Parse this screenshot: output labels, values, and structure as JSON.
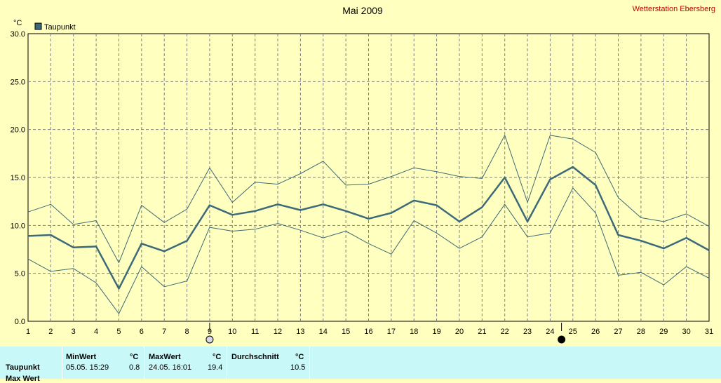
{
  "chart_data": {
    "type": "line",
    "title": "Mai 2009",
    "station": "Wetterstation Ebersberg",
    "ylabel": "°C",
    "ylim": [
      0,
      30
    ],
    "yticks": [
      "0.0",
      "5.0",
      "10.0",
      "15.0",
      "20.0",
      "25.0",
      "30.0"
    ],
    "x": [
      1,
      2,
      3,
      4,
      5,
      6,
      7,
      8,
      9,
      10,
      11,
      12,
      13,
      14,
      15,
      16,
      17,
      18,
      19,
      20,
      21,
      22,
      23,
      24,
      25,
      26,
      27,
      28,
      29,
      30,
      31
    ],
    "xlim": [
      1,
      31
    ],
    "grid": true,
    "legend": {
      "position": "top-left",
      "entries": [
        "Taupunkt"
      ]
    },
    "series": [
      {
        "name": "Taupunkt",
        "role": "mean",
        "values": [
          8.9,
          9.0,
          7.7,
          7.8,
          3.4,
          8.1,
          7.3,
          8.4,
          12.1,
          11.1,
          11.5,
          12.2,
          11.6,
          12.2,
          11.5,
          10.7,
          11.3,
          12.6,
          12.1,
          10.4,
          11.9,
          15.0,
          10.4,
          14.8,
          16.1,
          14.2,
          9.0,
          8.4,
          7.6,
          8.7,
          7.4
        ]
      },
      {
        "role": "max",
        "values": [
          11.4,
          12.2,
          10.1,
          10.5,
          6.1,
          12.1,
          10.3,
          11.7,
          16.0,
          12.4,
          14.5,
          14.3,
          15.4,
          16.7,
          14.2,
          14.3,
          15.1,
          16.0,
          15.6,
          15.1,
          14.9,
          19.4,
          12.4,
          19.4,
          19.0,
          17.6,
          12.9,
          10.8,
          10.4,
          11.2,
          9.9
        ]
      },
      {
        "role": "min",
        "values": [
          6.5,
          5.2,
          5.5,
          4.0,
          0.8,
          5.7,
          3.6,
          4.2,
          9.8,
          9.4,
          9.6,
          10.2,
          9.5,
          8.7,
          9.4,
          8.1,
          7.0,
          10.5,
          9.2,
          7.6,
          8.8,
          12.2,
          8.8,
          9.2,
          13.9,
          11.3,
          4.8,
          5.1,
          3.8,
          5.7,
          4.5
        ]
      }
    ],
    "markers": [
      {
        "x": 9,
        "icon": "full-moon-icon"
      },
      {
        "x": 24.5,
        "icon": "new-moon-icon"
      }
    ],
    "colors": {
      "background": "#ffffc0",
      "line": "#3c6a78",
      "grid": "#808080",
      "stats_bg": "#c8f8f8"
    }
  },
  "stats": {
    "row_label": "Taupunkt",
    "row_label_2": "Max Wert",
    "min_header": "MinWert",
    "max_header": "MaxWert",
    "avg_header": "Durchschnitt",
    "unit": "°C",
    "min_time": "05.05.  15:29",
    "min_value": "0.8",
    "max_time": "24.05.  16:01",
    "max_value": "19.4",
    "avg_value": "10.5"
  }
}
